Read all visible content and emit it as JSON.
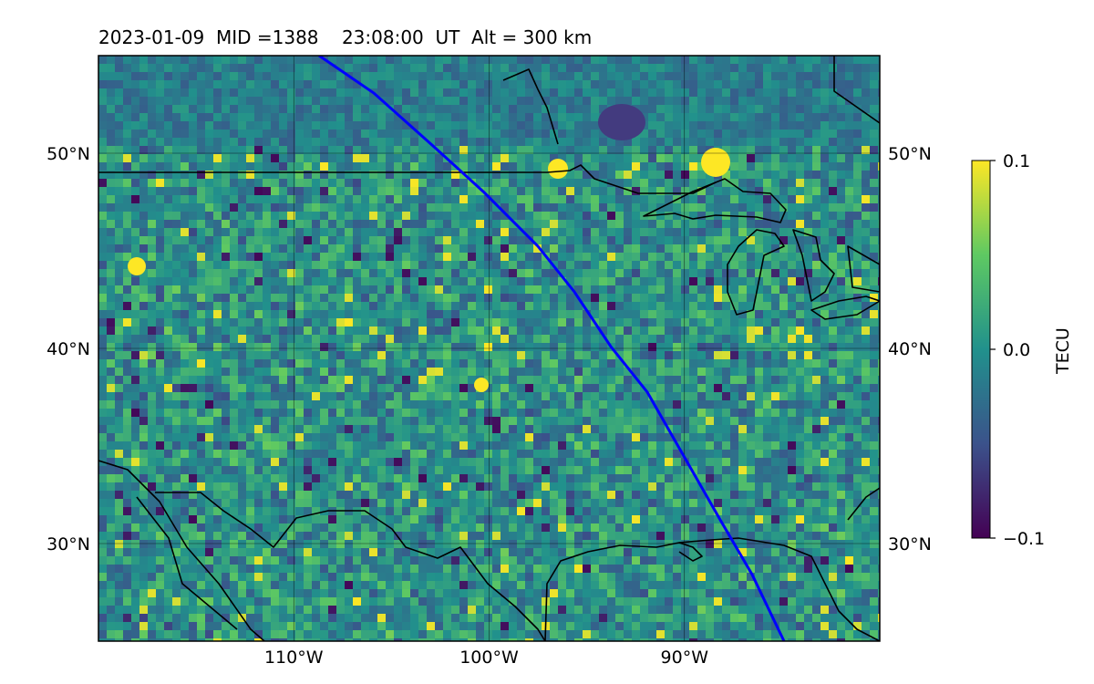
{
  "title": "2023-01-09  MID =1388    23:08:00  UT  Alt = 300 km",
  "map": {
    "extent": {
      "lon": [
        -120,
        -80
      ],
      "lat": [
        25,
        55
      ]
    },
    "lon_ticks": [
      {
        "lon": -110,
        "label": "110°W"
      },
      {
        "lon": -100,
        "label": "100°W"
      },
      {
        "lon": -90,
        "label": "90°W"
      }
    ],
    "lat_ticks": [
      {
        "lat": 50,
        "label": "50°N"
      },
      {
        "lat": 40,
        "label": "40°N"
      },
      {
        "lat": 30,
        "label": "30°N"
      }
    ],
    "gridlines": true,
    "colormap": "viridis",
    "terminator_color": "#0000ff"
  },
  "colorbar": {
    "label": "TECU",
    "min": -0.1,
    "max": 0.1,
    "ticks": [
      {
        "value": 0.1,
        "label": "0.1"
      },
      {
        "value": 0.0,
        "label": "0.0"
      },
      {
        "value": -0.1,
        "label": "−0.1"
      }
    ]
  }
}
